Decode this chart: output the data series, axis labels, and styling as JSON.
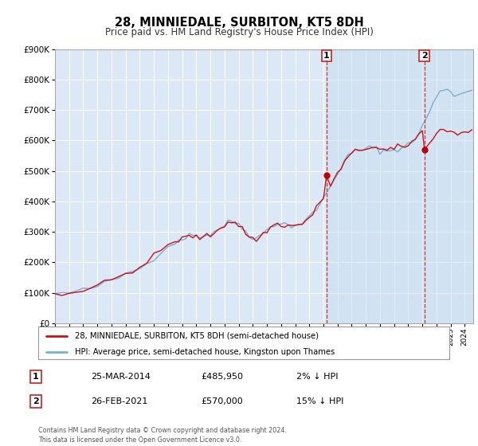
{
  "title": "28, MINNIEDALE, SURBITON, KT5 8DH",
  "subtitle": "Price paid vs. HM Land Registry's House Price Index (HPI)",
  "legend_line1": "28, MINNIEDALE, SURBITON, KT5 8DH (semi-detached house)",
  "legend_line2": "HPI: Average price, semi-detached house, Kingston upon Thames",
  "annotation1_label": "1",
  "annotation1_date": "25-MAR-2014",
  "annotation1_price": "£485,950",
  "annotation1_hpi": "2% ↓ HPI",
  "annotation1_year": 2014.22,
  "annotation1_value": 485950,
  "annotation2_label": "2",
  "annotation2_date": "26-FEB-2021",
  "annotation2_price": "£570,000",
  "annotation2_hpi": "15% ↓ HPI",
  "annotation2_year": 2021.15,
  "annotation2_value": 570000,
  "vline1_year": 2014.22,
  "vline2_year": 2021.15,
  "hpi_color": "#7aafd4",
  "price_color": "#cc1111",
  "dot_color": "#bb0000",
  "vline_color": "#cc3333",
  "background_color": "#ffffff",
  "plot_bg_color": "#dce8f5",
  "shade_color": "#c8ddf0",
  "ylim": [
    0,
    900000
  ],
  "xlim_start": 1995.0,
  "xlim_end": 2024.6,
  "footer": "Contains HM Land Registry data © Crown copyright and database right 2024.\nThis data is licensed under the Open Government Licence v3.0."
}
